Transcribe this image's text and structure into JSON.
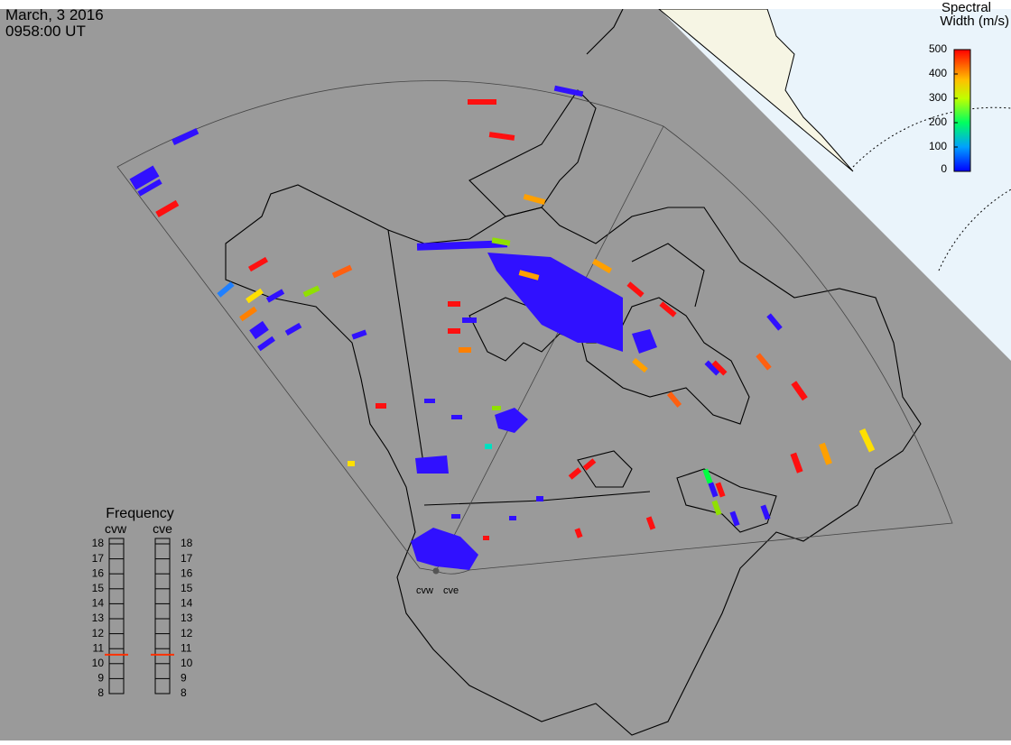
{
  "header": {
    "date": "March, 3 2016",
    "time": "0958:00 UT"
  },
  "colorbar": {
    "title": [
      "Spectral",
      "Width (m/s)"
    ],
    "range": [
      0,
      500
    ],
    "ticks": [
      0,
      100,
      200,
      300,
      400,
      500
    ]
  },
  "frequency": {
    "title": "Frequency",
    "range": [
      8,
      18
    ],
    "ticks": [
      8,
      9,
      10,
      11,
      12,
      13,
      14,
      15,
      16,
      17,
      18
    ],
    "radars": [
      {
        "name": "cvw",
        "value": 10.6
      },
      {
        "name": "cve",
        "value": 10.6
      }
    ]
  }
}
